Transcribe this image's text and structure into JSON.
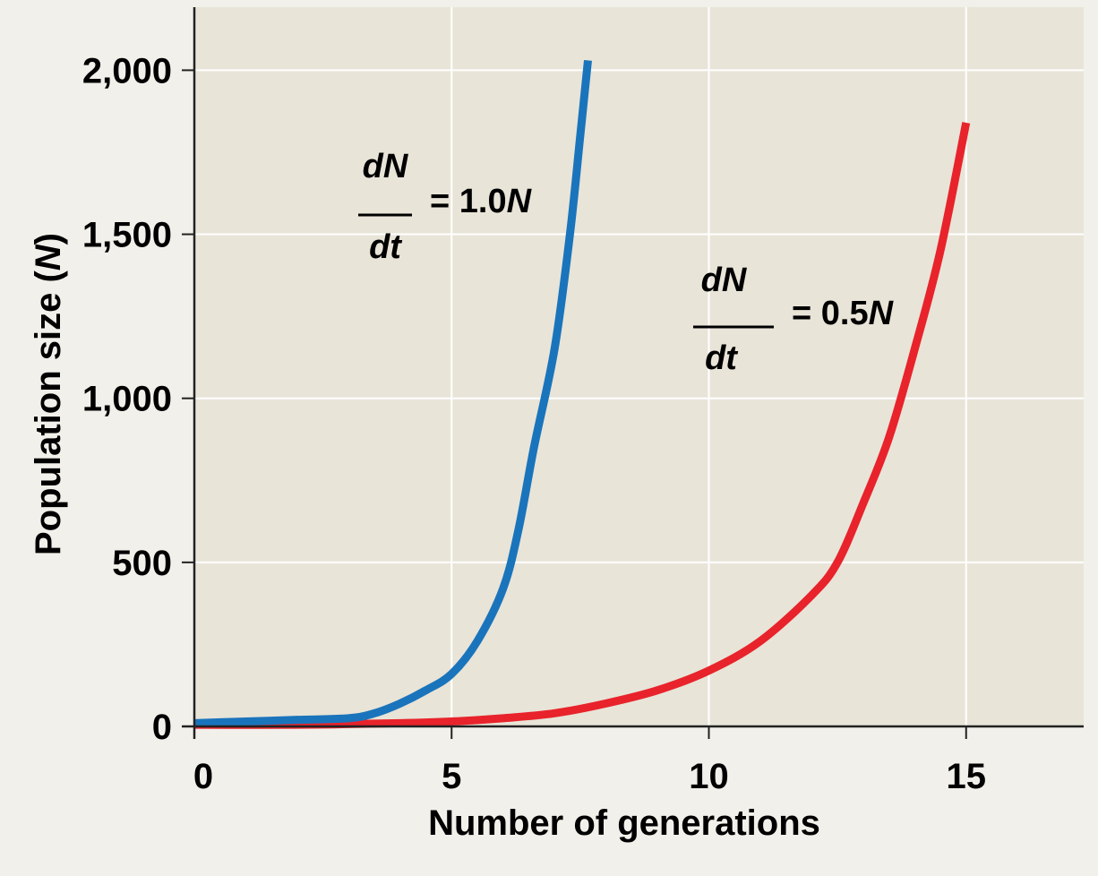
{
  "chart_data": {
    "type": "line",
    "xlabel": "Number of generations",
    "ylabel_main": "Population size (",
    "ylabel_var": "N",
    "ylabel_close": ")",
    "xlim": [
      0,
      17.2
    ],
    "ylim": [
      0,
      2200
    ],
    "x_ticks": [
      0,
      5,
      10,
      15
    ],
    "x_tick_labels": [
      "0",
      "5",
      "10",
      "15"
    ],
    "y_ticks": [
      0,
      500,
      1000,
      1500,
      2000
    ],
    "y_tick_labels": [
      "0",
      "500",
      "1,000",
      "1,500",
      "2,000"
    ],
    "grid": true,
    "plot_background": "#e8e4d8",
    "page_background": "#f2f0ea",
    "series": [
      {
        "color": "#1a74bb",
        "x": [
          0,
          1,
          2,
          3,
          3.5,
          4,
          4.5,
          5,
          5.5,
          6,
          6.3,
          6.6,
          7,
          7.3,
          7.5,
          7.65
        ],
        "y": [
          10,
          15,
          20,
          25,
          40,
          70,
          110,
          160,
          260,
          420,
          600,
          850,
          1150,
          1500,
          1800,
          2030
        ]
      },
      {
        "color": "#e8232b",
        "x": [
          0,
          2,
          4,
          5,
          6,
          7,
          8,
          9,
          10,
          11,
          12,
          12.5,
          13,
          13.5,
          14,
          14.5,
          15
        ],
        "y": [
          5,
          5,
          10,
          15,
          25,
          40,
          70,
          110,
          170,
          260,
          400,
          500,
          680,
          880,
          1150,
          1450,
          1840
        ]
      }
    ],
    "annotations": [
      {
        "numerator": "dN",
        "denominator": "dt",
        "eq": "= 1.0",
        "var": "N"
      },
      {
        "numerator": "dN",
        "denominator": "dt",
        "eq": "= 0.5",
        "var": "N"
      }
    ]
  }
}
